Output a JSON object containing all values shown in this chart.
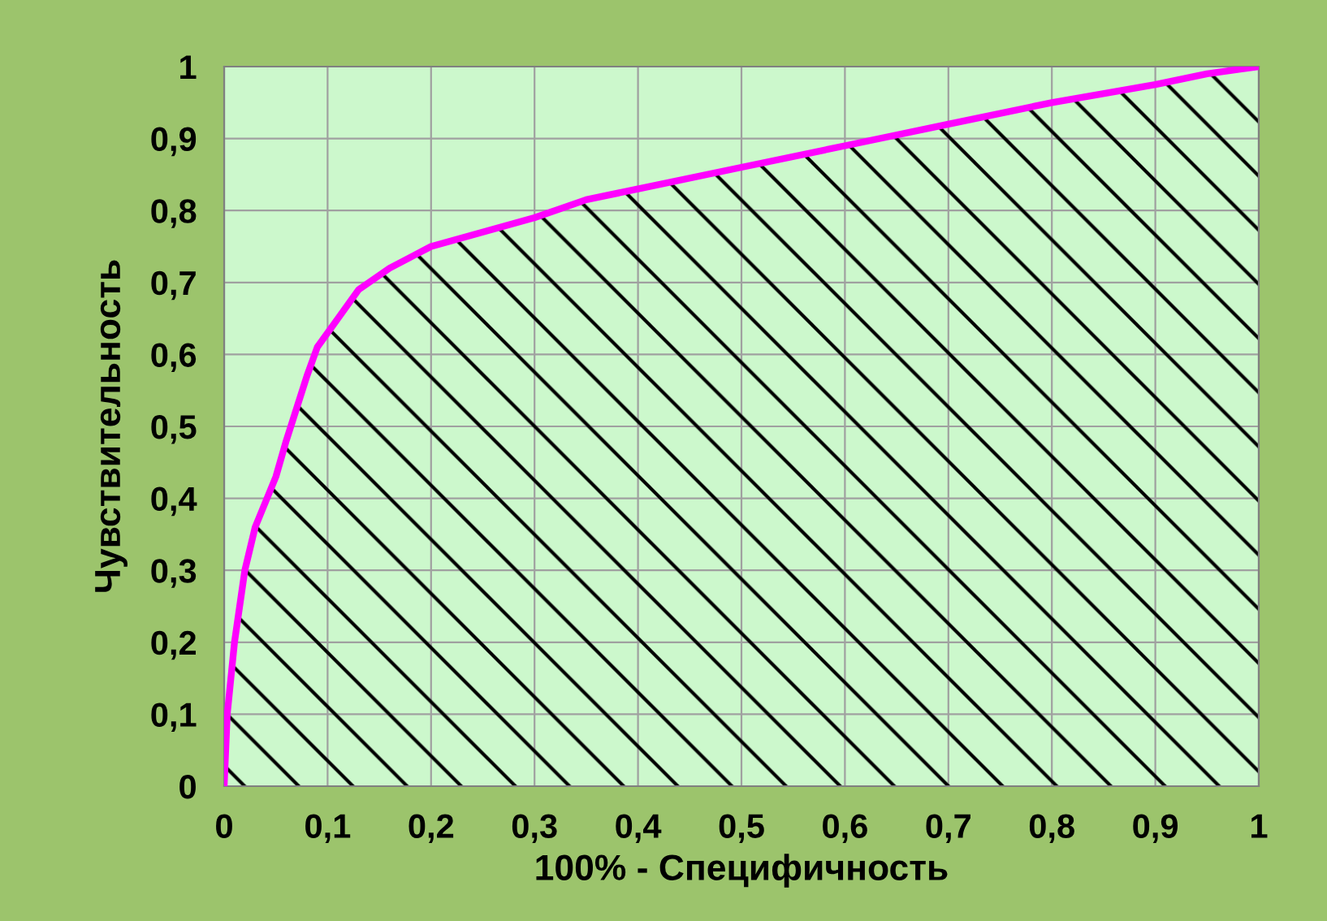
{
  "chart_data": {
    "type": "area",
    "xlabel": "100% - Специфичность",
    "ylabel": "Чувствительность",
    "series": [
      {
        "color": "#ff00ff",
        "x": [
          0,
          0.003,
          0.01,
          0.02,
          0.03,
          0.05,
          0.06,
          0.08,
          0.09,
          0.11,
          0.13,
          0.16,
          0.2,
          0.3,
          0.35,
          0.4,
          0.5,
          0.6,
          0.7,
          0.8,
          0.9,
          0.95,
          1
        ],
        "values": [
          0,
          0.1,
          0.2,
          0.3,
          0.36,
          0.43,
          0.48,
          0.57,
          0.61,
          0.65,
          0.69,
          0.72,
          0.75,
          0.79,
          0.815,
          0.83,
          0.86,
          0.89,
          0.92,
          0.95,
          0.975,
          0.99,
          1
        ]
      }
    ],
    "xlim": [
      0,
      1
    ],
    "ylim": [
      0,
      1
    ],
    "xticks": [
      0,
      {
        "value": 0.1,
        "label": "0,1"
      },
      {
        "value": 0.2,
        "label": "0,2"
      },
      {
        "value": 0.3,
        "label": "0,3"
      },
      {
        "value": 0.4,
        "label": "0,4"
      },
      {
        "value": 0.5,
        "label": "0,5"
      },
      {
        "value": 0.6,
        "label": "0,6"
      },
      {
        "value": 0.7,
        "label": "0,7"
      },
      {
        "value": 0.8,
        "label": "0,8"
      },
      {
        "value": 0.9,
        "label": "0,9"
      },
      1
    ],
    "yticks": [
      0,
      {
        "value": 0.1,
        "label": "0,1"
      },
      {
        "value": 0.2,
        "label": "0,2"
      },
      {
        "value": 0.3,
        "label": "0,3"
      },
      {
        "value": 0.4,
        "label": "0,4"
      },
      {
        "value": 0.5,
        "label": "0,5"
      },
      {
        "value": 0.6,
        "label": "0,6"
      },
      {
        "value": 0.7,
        "label": "0,7"
      },
      {
        "value": 0.8,
        "label": "0,8"
      },
      {
        "value": 0.9,
        "label": "0,9"
      },
      1
    ],
    "grid": true,
    "marker": "none",
    "line_style": "solid"
  }
}
